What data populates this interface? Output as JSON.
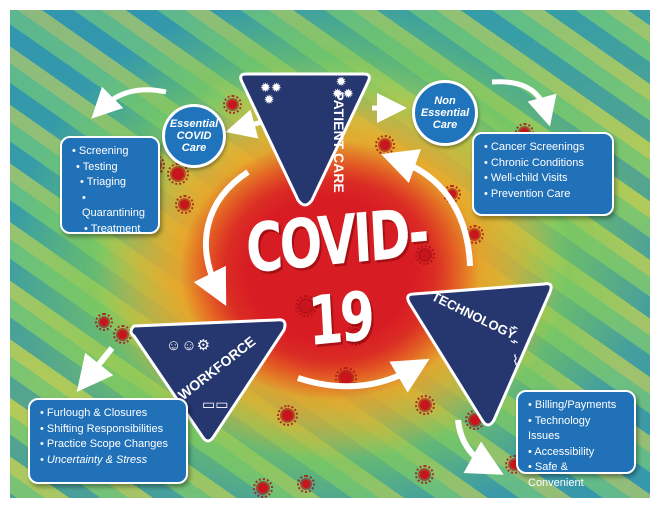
{
  "title": "COVID-19",
  "nodes": {
    "patient_care": "PATIENT CARE",
    "workforce": "WORKFORCE",
    "technology": "TECHNOLOGY"
  },
  "bubbles": {
    "essential": [
      "Essential",
      "COVID",
      "Care"
    ],
    "non_essential": [
      "Non",
      "Essential",
      "Care"
    ]
  },
  "boxes": {
    "essential_items": [
      "Screening",
      "Testing",
      "Triaging",
      "Quarantining",
      "Treatment"
    ],
    "non_essential_items": [
      "Cancer Screenings",
      "Chronic Conditions",
      "Well-child Visits",
      "Prevention Care"
    ],
    "workforce_items": [
      "Furlough & Closures",
      "Shifting Responsibilities",
      "Practice Scope Changes",
      "Uncertainty & Stress"
    ],
    "technology_items": [
      "Billing/Payments",
      "Technology Issues",
      "Accessibility",
      "Safe & Convenient"
    ]
  },
  "icons": {
    "patient_care": "virus-cluster-icon",
    "workforce": "people-and-org-chart-icon",
    "technology": "circuit-icon"
  },
  "colors": {
    "triangle": "#26366f",
    "box": "#2171b9",
    "bubble": "#1f74bc",
    "core_red": "#d81c24"
  }
}
